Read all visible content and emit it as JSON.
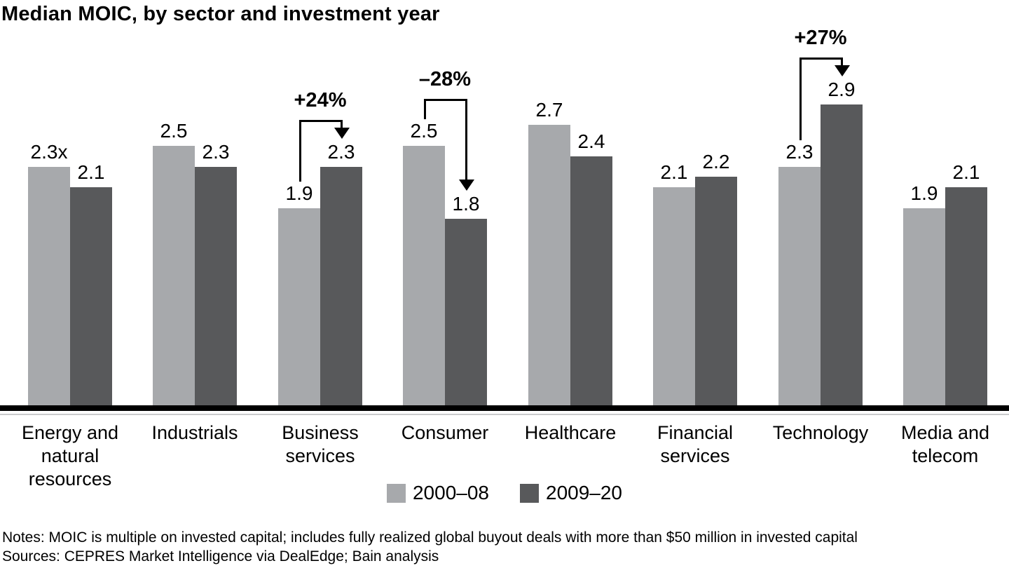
{
  "title": "Median MOIC, by sector and investment year",
  "chart_data": {
    "type": "bar",
    "categories": [
      "Energy and natural resources",
      "Industrials",
      "Business services",
      "Consumer",
      "Healthcare",
      "Financial services",
      "Technology",
      "Media and telecom"
    ],
    "category_labels": [
      "Energy and\nnatural resources",
      "Industrials",
      "Business\nservices",
      "Consumer",
      "Healthcare",
      "Financial\nservices",
      "Technology",
      "Media and\ntelecom"
    ],
    "series": [
      {
        "name": "2000–08",
        "color": "#a7a9ac",
        "values": [
          2.3,
          2.5,
          1.9,
          2.5,
          2.7,
          2.1,
          2.3,
          1.9
        ],
        "labels": [
          "2.3x",
          "2.5",
          "1.9",
          "2.5",
          "2.7",
          "2.1",
          "2.3",
          "1.9"
        ]
      },
      {
        "name": "2009–20",
        "color": "#58595b",
        "values": [
          2.1,
          2.3,
          2.3,
          1.8,
          2.4,
          2.2,
          2.9,
          2.1
        ],
        "labels": [
          "2.1",
          "2.3",
          "2.3",
          "1.8",
          "2.4",
          "2.2",
          "2.9",
          "2.1"
        ]
      }
    ],
    "annotations": [
      {
        "category": "Business services",
        "label": "+24%"
      },
      {
        "category": "Consumer",
        "label": "–28%"
      },
      {
        "category": "Technology",
        "label": "+27%"
      }
    ],
    "unit_suffix": "x",
    "ylim": [
      0,
      3.0
    ],
    "grid": false,
    "axis_color": "#000000",
    "legend_position": "bottom"
  },
  "legend": {
    "items": [
      {
        "label": "2000–08",
        "color": "#a7a9ac"
      },
      {
        "label": "2009–20",
        "color": "#58595b"
      }
    ]
  },
  "footer": {
    "notes": "Notes: MOIC is multiple on invested capital; includes fully realized global buyout deals with more than $50 million in invested capital",
    "sources": "Sources: CEPRES Market Intelligence via DealEdge; Bain analysis"
  }
}
